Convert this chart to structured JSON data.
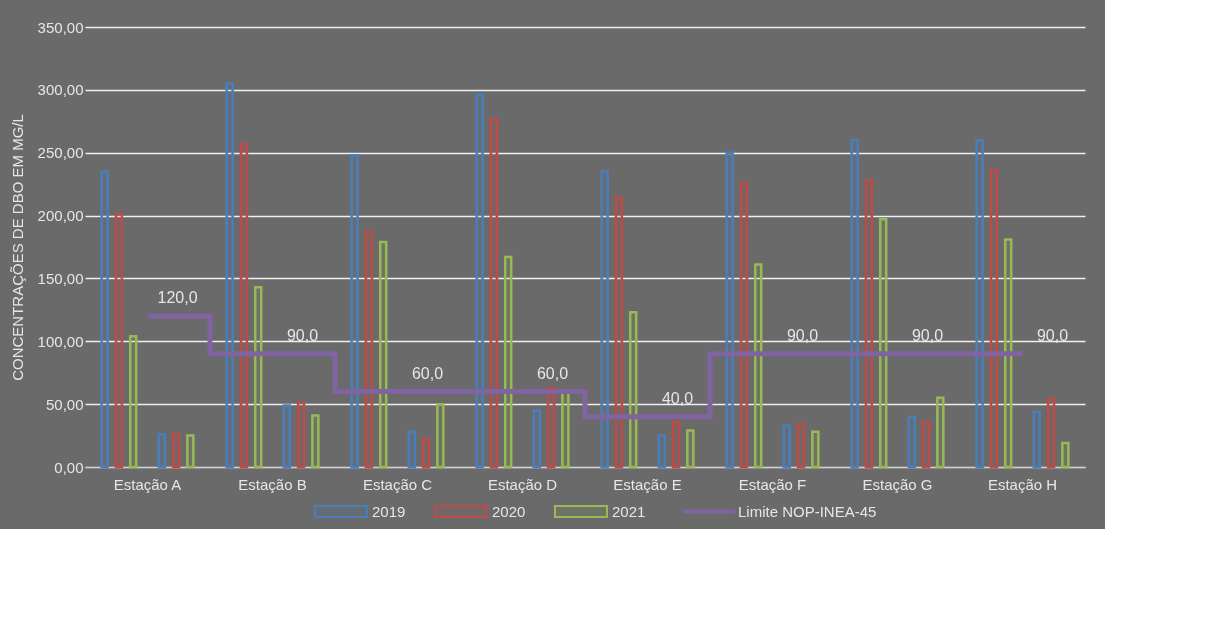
{
  "chart_data": {
    "type": "bar",
    "categories": [
      "Estação A",
      "Estação B",
      "Estação C",
      "Estação D",
      "Estação E",
      "Estação F",
      "Estação G",
      "Estação H"
    ],
    "ylabel": "CONCENTRAÇÕES DE DBO EM MG/L",
    "ylim": [
      0,
      350
    ],
    "yticks": [
      {
        "value": 0,
        "label": "0,00"
      },
      {
        "value": 50,
        "label": "50,00"
      },
      {
        "value": 100,
        "label": "100,00"
      },
      {
        "value": 150,
        "label": "150,00"
      },
      {
        "value": 200,
        "label": "200,00"
      },
      {
        "value": 250,
        "label": "250,00"
      },
      {
        "value": 300,
        "label": "300,00"
      },
      {
        "value": 350,
        "label": "350,00"
      }
    ],
    "grid": "y",
    "legend": "bottom",
    "series": [
      {
        "name": "2019",
        "color": "#4a7ebb",
        "values": [
          235,
          305,
          248,
          296,
          235,
          250,
          260,
          260
        ]
      },
      {
        "name": "2020",
        "color": "#be4b48",
        "values": [
          201,
          257,
          187,
          277,
          214,
          226,
          228,
          236
        ]
      },
      {
        "name": "2021",
        "color": "#98b954",
        "values": [
          104,
          143,
          179,
          167,
          123,
          161,
          197,
          181
        ]
      },
      {
        "color": "#4a7ebb",
        "values": [
          26,
          49,
          28,
          45,
          25,
          33,
          40,
          44
        ]
      },
      {
        "color": "#be4b48",
        "values": [
          26,
          51,
          22,
          63,
          36,
          34,
          36,
          54
        ]
      },
      {
        "color": "#98b954",
        "values": [
          25,
          41,
          50,
          60,
          29,
          28,
          55,
          19
        ]
      },
      {
        "name": "Limite NOP-INEA-45",
        "type": "step",
        "color": "#8064a2",
        "values": [
          120,
          90,
          60,
          60,
          40,
          90,
          90,
          90
        ],
        "value_labels": [
          "120,0",
          "90,0",
          "60,0",
          "60,0",
          "40,0",
          "90,0",
          "90,0",
          "90,0"
        ]
      }
    ]
  }
}
